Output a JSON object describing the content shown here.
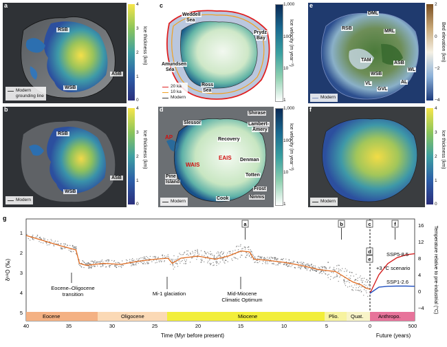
{
  "panels": {
    "a": {
      "letter": "a",
      "labels": [
        "RSB",
        "ASB",
        "WSB"
      ],
      "legend": [
        "Modern",
        "grounding line"
      ],
      "cbar_title": "Ice thickness (km)",
      "ticks": [
        "4",
        "3",
        "2",
        "1",
        "0"
      ]
    },
    "b": {
      "letter": "b",
      "labels": [
        "RSB",
        "ASB",
        "WSB"
      ],
      "legend": [
        "Modern"
      ],
      "cbar_title": "Ice thickness (km)",
      "ticks": [
        "4",
        "3",
        "2",
        "1",
        "0"
      ]
    },
    "c": {
      "letter": "c",
      "labels": [
        "Weddell",
        "Sea",
        "Prydz",
        "Bay",
        "Amundsen",
        "Sea",
        "Ross",
        "Sea"
      ],
      "legend": [
        "20 ka",
        "10 ka",
        "Modern"
      ],
      "cbar_title": "Ice velocity (m year⁻¹)",
      "ticks": [
        "1,000",
        "100",
        "10",
        "1"
      ]
    },
    "d": {
      "letter": "d",
      "labels": [
        "Slessor",
        "Shirase",
        "Lambert-",
        "Amery",
        "AP",
        "Recovery",
        "EAIS",
        "WAIS",
        "Denman",
        "Pine",
        "Island",
        "Totten",
        "Frost",
        "Cook",
        "Ninnis"
      ],
      "legend": [
        "Modern"
      ],
      "cbar_title": "Ice velocity (m year⁻¹)",
      "ticks": [
        "1,000",
        "100",
        "10",
        "1"
      ]
    },
    "e": {
      "letter": "e",
      "labels": [
        "DML",
        "RSB",
        "MRL",
        "TAM",
        "ASB",
        "WSB",
        "WL",
        "AL",
        "VL",
        "GVL"
      ],
      "legend": [
        "Modern"
      ],
      "cbar_title": "Bed elevation (km)",
      "ticks": [
        "2",
        "0",
        "−2",
        "−4"
      ]
    },
    "f": {
      "letter": "f",
      "legend": [
        "Modern"
      ],
      "cbar_title": "Ice thickness (km)",
      "ticks": [
        "4",
        "3",
        "2",
        "1",
        "0"
      ]
    }
  },
  "chart_data": {
    "type": "line",
    "letter": "g",
    "ylabel_left": "δ¹⁸O (‰)",
    "ylabel_right": "Temperature relative to pre-industrial (°C)",
    "xlabel": "Time (Myr before present)",
    "xlabel_future": "Future (years)",
    "x_ticks": [
      "40",
      "35",
      "30",
      "25",
      "20",
      "15",
      "10",
      "5",
      "0"
    ],
    "x_ticks_future": [
      "0",
      "500"
    ],
    "y_ticks_left": [
      "1",
      "2",
      "3",
      "4",
      "5"
    ],
    "y_ticks_right": [
      "16",
      "12",
      "8",
      "4",
      "0",
      "−4"
    ],
    "markers": [
      "a",
      "b",
      "c",
      "d",
      "e",
      "f"
    ],
    "annotations": [
      "Eocene–Oligocene",
      "transition",
      "Mi-1 glaciation",
      "Mid-Miocene",
      "Climatic Optimum"
    ],
    "scenarios": [
      "SSP5-8.5",
      "+3 °C scenario",
      "SSP1-2.6"
    ],
    "epochs": [
      "Eocene",
      "Oligocene",
      "Miocene",
      "Plio.",
      "Quat.",
      "Anthropo."
    ],
    "smooth_series": {
      "x": [
        40,
        38,
        36,
        34.2,
        33.8,
        33,
        31,
        29,
        27,
        25,
        23.5,
        23,
        22,
        20,
        18,
        16.5,
        15,
        14,
        13.5,
        12,
        10,
        8,
        6,
        4,
        3,
        2,
        1,
        0.5,
        0
      ],
      "y": [
        1.3,
        1.55,
        1.8,
        2.0,
        2.65,
        2.75,
        2.65,
        2.7,
        2.55,
        2.45,
        2.4,
        2.65,
        2.4,
        2.3,
        2.45,
        2.3,
        2.05,
        2.1,
        2.45,
        2.5,
        2.6,
        2.75,
        2.95,
        3.05,
        3.3,
        3.55,
        3.7,
        3.85,
        3.9
      ]
    },
    "future_series": [
      {
        "name": "SSP5-8.5",
        "color": "#d42020",
        "x": [
          0,
          100,
          200,
          300,
          400,
          500
        ],
        "y": [
          0,
          4.5,
          7.2,
          8.6,
          9.3,
          9.6
        ]
      },
      {
        "name": "SSP1-2.6",
        "color": "#2050c0",
        "x": [
          0,
          100,
          200,
          300,
          400,
          500
        ],
        "y": [
          0,
          1.5,
          1.7,
          1.75,
          1.75,
          1.7
        ]
      }
    ],
    "xlim": [
      40,
      0
    ],
    "ylim_left": [
      5,
      0.5
    ],
    "ylim_right": [
      -4,
      16
    ]
  },
  "colors": {
    "thickness_low": "#2b4aa0",
    "thickness_high": "#f6e54a",
    "velocity_high": "#0b2a55",
    "accent_red": "#d01010"
  }
}
